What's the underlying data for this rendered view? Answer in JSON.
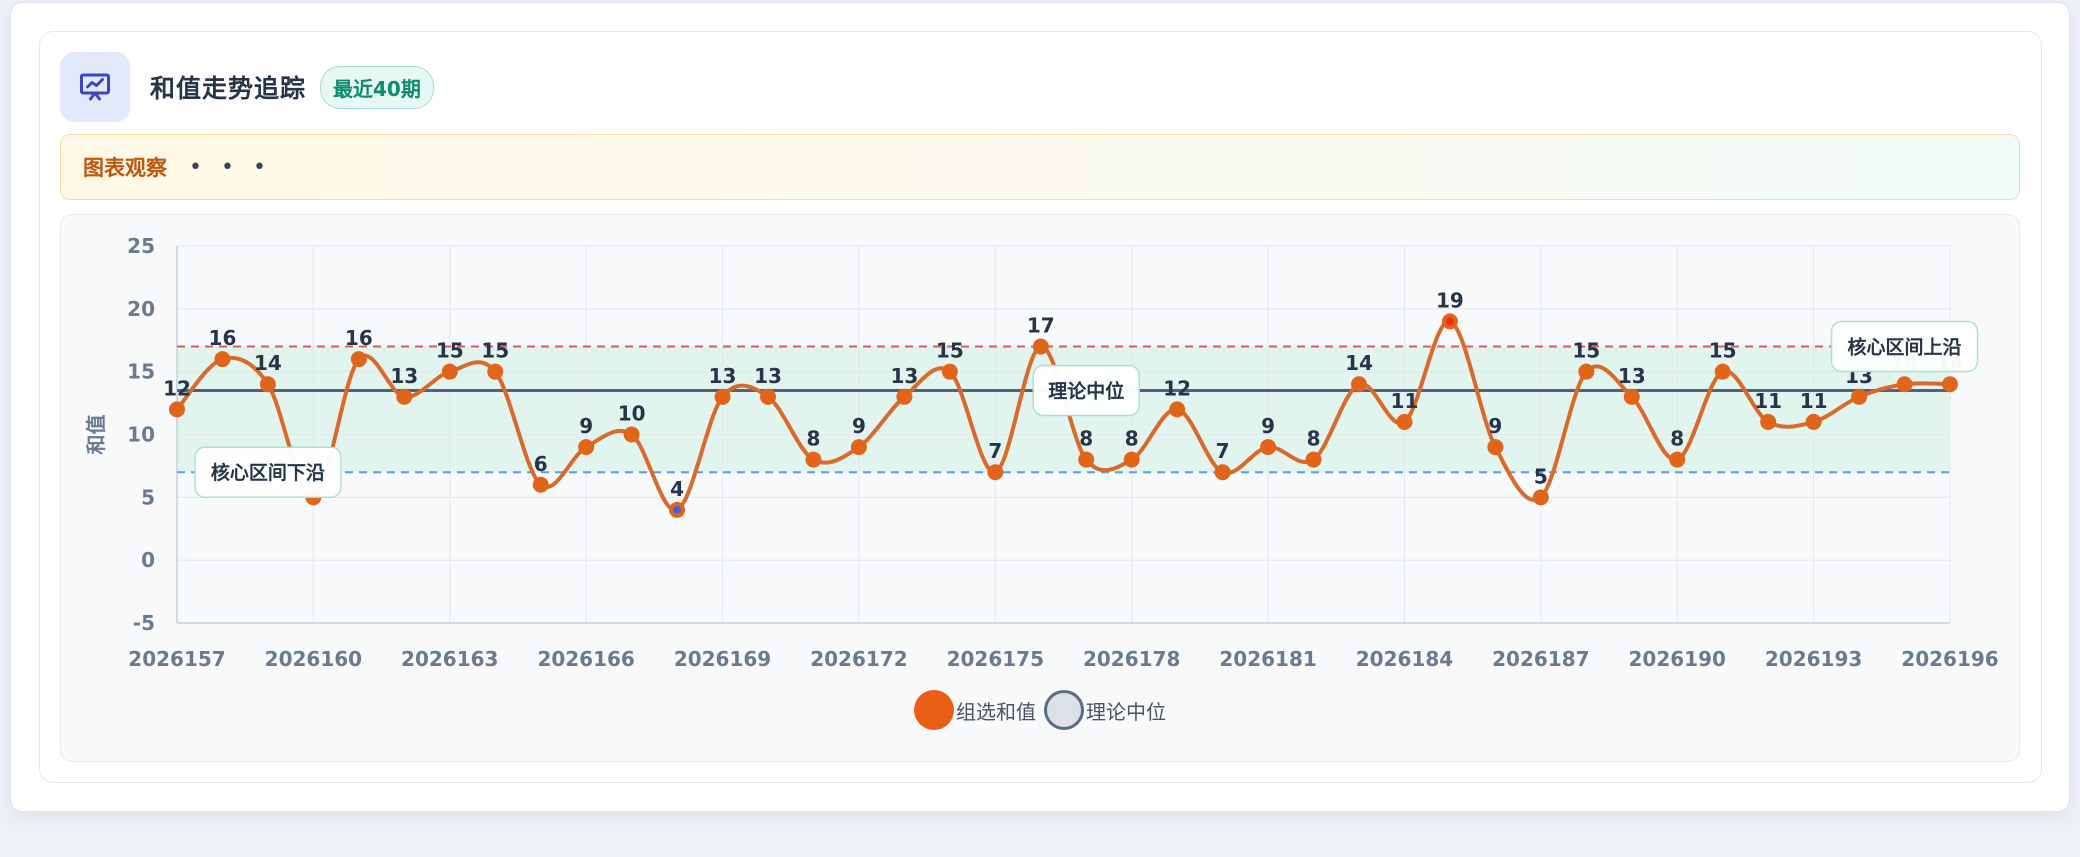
{
  "header": {
    "title": "和值走势追踪",
    "badge": "最近40期",
    "icon": "presentation-chart-icon"
  },
  "notice": {
    "title": "图表观察",
    "dots": "• • •"
  },
  "chart_data": {
    "type": "line",
    "x": [
      "2026157",
      "2026158",
      "2026159",
      "2026160",
      "2026161",
      "2026162",
      "2026163",
      "2026164",
      "2026165",
      "2026166",
      "2026167",
      "2026168",
      "2026169",
      "2026170",
      "2026171",
      "2026172",
      "2026173",
      "2026174",
      "2026175",
      "2026176",
      "2026177",
      "2026178",
      "2026179",
      "2026180",
      "2026181",
      "2026182",
      "2026183",
      "2026184",
      "2026185",
      "2026186",
      "2026187",
      "2026188",
      "2026189",
      "2026190",
      "2026191",
      "2026192",
      "2026193",
      "2026194",
      "2026195",
      "2026196"
    ],
    "x_tick_labels": [
      "2026157",
      "2026160",
      "2026163",
      "2026166",
      "2026169",
      "2026172",
      "2026175",
      "2026178",
      "2026181",
      "2026184",
      "2026187",
      "2026190",
      "2026193",
      "2026196"
    ],
    "series": [
      {
        "name": "组选和值",
        "values": [
          12,
          16,
          14,
          5,
          16,
          13,
          15,
          15,
          6,
          9,
          10,
          4,
          13,
          13,
          8,
          9,
          13,
          15,
          7,
          17,
          8,
          8,
          12,
          7,
          9,
          8,
          14,
          11,
          19,
          9,
          5,
          15,
          13,
          8,
          15,
          11,
          11,
          13,
          14,
          14
        ],
        "color": "#e0651b"
      },
      {
        "name": "理论中位",
        "values": [
          13.5,
          13.5,
          13.5,
          13.5,
          13.5,
          13.5,
          13.5,
          13.5,
          13.5,
          13.5,
          13.5,
          13.5,
          13.5,
          13.5,
          13.5,
          13.5,
          13.5,
          13.5,
          13.5,
          13.5,
          13.5,
          13.5,
          13.5,
          13.5,
          13.5,
          13.5,
          13.5,
          13.5,
          13.5,
          13.5,
          13.5,
          13.5,
          13.5,
          13.5,
          13.5,
          13.5,
          13.5,
          13.5,
          13.5,
          13.5
        ],
        "color": "#52627a"
      }
    ],
    "ylabel": "和值",
    "ylim": [
      -5,
      25
    ],
    "y_ticks": [
      "-5",
      "0",
      "5",
      "10",
      "15",
      "20",
      "25"
    ],
    "band": {
      "low": 7,
      "high": 17,
      "color": "#d9f2ea"
    },
    "upper_line": {
      "value": 17,
      "color": "#e05a5a"
    },
    "lower_line": {
      "value": 7,
      "color": "#5b9cf0"
    },
    "annotations": [
      {
        "text": "核心区间上沿",
        "x": "2026195",
        "y": 17
      },
      {
        "text": "核心区间下沿",
        "x": "2026159",
        "y": 7
      },
      {
        "text": "理论中位",
        "x": "2026177",
        "y": 13.5
      }
    ],
    "grid": true,
    "legend_position": "bottom-center",
    "legend": [
      {
        "label": "组选和值",
        "color": "#ea5e16"
      },
      {
        "label": "理论中位",
        "color": "#dbe0e9"
      }
    ],
    "high_color": "#ef2d1f",
    "low_color": "#4a5fd0"
  }
}
